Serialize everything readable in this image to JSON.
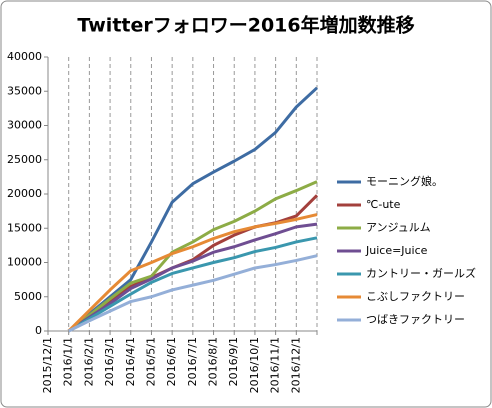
{
  "chart_data": {
    "type": "line",
    "title": "Twitterフォロワー2016年増加数推移",
    "categories": [
      "2015/12/1",
      "2016/1/1",
      "2016/2/1",
      "2016/3/1",
      "2016/4/1",
      "2016/5/1",
      "2016/6/1",
      "2016/7/1",
      "2016/8/1",
      "2016/9/1",
      "2016/10/1",
      "2016/11/1",
      "2016/12/1",
      null
    ],
    "series": [
      {
        "name": "モーニング娘。",
        "color": "#3e6ca3",
        "values": [
          null,
          0,
          2500,
          5000,
          7500,
          13000,
          18800,
          21500,
          23200,
          24800,
          26500,
          29000,
          32700,
          35500
        ]
      },
      {
        "name": "℃-ute",
        "color": "#a3403c",
        "values": [
          null,
          0,
          2200,
          4300,
          6500,
          7800,
          9200,
          10400,
          12500,
          14000,
          15200,
          15800,
          16800,
          19800
        ]
      },
      {
        "name": "アンジュルム",
        "color": "#8dac46",
        "values": [
          null,
          0,
          2300,
          4700,
          7000,
          8000,
          11500,
          13000,
          14800,
          16000,
          17500,
          19300,
          20500,
          21800
        ]
      },
      {
        "name": "Juice=Juice",
        "color": "#6f4e92",
        "values": [
          null,
          0,
          2000,
          4000,
          6200,
          7600,
          9200,
          10200,
          11500,
          12300,
          13300,
          14200,
          15200,
          15600
        ]
      },
      {
        "name": "カントリー・ガールズ",
        "color": "#3a97ae",
        "values": [
          null,
          0,
          1800,
          3600,
          5400,
          7100,
          8400,
          9200,
          10000,
          10700,
          11600,
          12200,
          13000,
          13600
        ]
      },
      {
        "name": "こぶしファクトリー",
        "color": "#e68a35",
        "values": [
          null,
          0,
          3000,
          6000,
          8800,
          10000,
          11300,
          12300,
          13500,
          14500,
          15200,
          15700,
          16300,
          17000
        ]
      },
      {
        "name": "つばきファクトリー",
        "color": "#94afd8",
        "values": [
          null,
          0,
          1500,
          2900,
          4300,
          5000,
          6000,
          6700,
          7400,
          8300,
          9200,
          9700,
          10300,
          11000
        ]
      }
    ],
    "ylim": [
      0,
      40000
    ],
    "yticks": [
      0,
      5000,
      10000,
      15000,
      20000,
      25000,
      30000,
      35000,
      40000
    ],
    "grid": "x",
    "legend": "right"
  }
}
